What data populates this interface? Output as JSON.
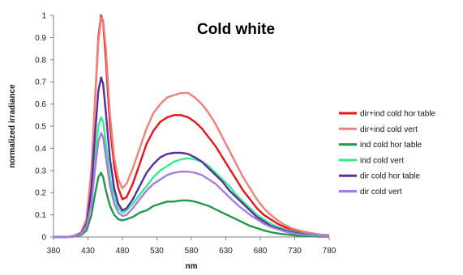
{
  "chart_data": {
    "type": "line",
    "title": "Cold white",
    "xlabel": "nm",
    "ylabel": "normalized irradiance",
    "xlim": [
      380,
      780
    ],
    "ylim": [
      0,
      1
    ],
    "x_ticks": [
      "380",
      "430",
      "480",
      "530",
      "580",
      "630",
      "680",
      "730",
      "780"
    ],
    "y_ticks": [
      "0",
      "0.1",
      "0.2",
      "0.3",
      "0.4",
      "0.5",
      "0.6",
      "0.7",
      "0.8",
      "0.9",
      "1"
    ],
    "legend_position": "right",
    "grid": false,
    "series": [
      {
        "name": "dir+ind cold hor table",
        "color": "#e8141c",
        "points": [
          [
            380,
            0
          ],
          [
            400,
            0
          ],
          [
            410,
            0.005
          ],
          [
            420,
            0.02
          ],
          [
            428,
            0.08
          ],
          [
            435,
            0.3
          ],
          [
            440,
            0.6
          ],
          [
            445,
            0.9
          ],
          [
            449,
            1.0
          ],
          [
            452,
            0.97
          ],
          [
            456,
            0.8
          ],
          [
            462,
            0.5
          ],
          [
            468,
            0.32
          ],
          [
            474,
            0.22
          ],
          [
            480,
            0.17
          ],
          [
            486,
            0.18
          ],
          [
            495,
            0.24
          ],
          [
            505,
            0.33
          ],
          [
            515,
            0.42
          ],
          [
            525,
            0.48
          ],
          [
            535,
            0.52
          ],
          [
            545,
            0.54
          ],
          [
            555,
            0.55
          ],
          [
            565,
            0.55
          ],
          [
            575,
            0.54
          ],
          [
            585,
            0.52
          ],
          [
            595,
            0.49
          ],
          [
            605,
            0.45
          ],
          [
            615,
            0.41
          ],
          [
            625,
            0.36
          ],
          [
            635,
            0.31
          ],
          [
            645,
            0.26
          ],
          [
            655,
            0.21
          ],
          [
            665,
            0.17
          ],
          [
            675,
            0.13
          ],
          [
            685,
            0.1
          ],
          [
            695,
            0.08
          ],
          [
            705,
            0.06
          ],
          [
            715,
            0.045
          ],
          [
            725,
            0.035
          ],
          [
            735,
            0.025
          ],
          [
            750,
            0.015
          ],
          [
            765,
            0.01
          ],
          [
            780,
            0.005
          ]
        ]
      },
      {
        "name": "dir+ind cold vert",
        "color": "#f08078",
        "points": [
          [
            380,
            0
          ],
          [
            400,
            0
          ],
          [
            410,
            0.005
          ],
          [
            420,
            0.02
          ],
          [
            428,
            0.08
          ],
          [
            435,
            0.3
          ],
          [
            440,
            0.6
          ],
          [
            445,
            0.88
          ],
          [
            449,
            0.99
          ],
          [
            452,
            0.98
          ],
          [
            456,
            0.85
          ],
          [
            462,
            0.55
          ],
          [
            468,
            0.36
          ],
          [
            474,
            0.26
          ],
          [
            480,
            0.22
          ],
          [
            486,
            0.24
          ],
          [
            495,
            0.31
          ],
          [
            505,
            0.4
          ],
          [
            515,
            0.49
          ],
          [
            525,
            0.56
          ],
          [
            535,
            0.6
          ],
          [
            545,
            0.63
          ],
          [
            555,
            0.64
          ],
          [
            565,
            0.65
          ],
          [
            575,
            0.65
          ],
          [
            585,
            0.63
          ],
          [
            595,
            0.6
          ],
          [
            605,
            0.56
          ],
          [
            615,
            0.51
          ],
          [
            625,
            0.45
          ],
          [
            635,
            0.39
          ],
          [
            645,
            0.33
          ],
          [
            655,
            0.27
          ],
          [
            665,
            0.22
          ],
          [
            675,
            0.17
          ],
          [
            685,
            0.13
          ],
          [
            695,
            0.1
          ],
          [
            705,
            0.075
          ],
          [
            715,
            0.055
          ],
          [
            725,
            0.04
          ],
          [
            735,
            0.03
          ],
          [
            750,
            0.02
          ],
          [
            765,
            0.012
          ],
          [
            780,
            0.008
          ]
        ]
      },
      {
        "name": "ind cold hor table",
        "color": "#1f9a48",
        "points": [
          [
            380,
            0
          ],
          [
            400,
            0
          ],
          [
            410,
            0.002
          ],
          [
            420,
            0.008
          ],
          [
            428,
            0.03
          ],
          [
            435,
            0.1
          ],
          [
            440,
            0.19
          ],
          [
            445,
            0.27
          ],
          [
            449,
            0.29
          ],
          [
            452,
            0.27
          ],
          [
            456,
            0.21
          ],
          [
            462,
            0.14
          ],
          [
            468,
            0.1
          ],
          [
            474,
            0.08
          ],
          [
            480,
            0.075
          ],
          [
            486,
            0.08
          ],
          [
            495,
            0.09
          ],
          [
            505,
            0.11
          ],
          [
            515,
            0.12
          ],
          [
            525,
            0.14
          ],
          [
            535,
            0.15
          ],
          [
            545,
            0.16
          ],
          [
            555,
            0.16
          ],
          [
            565,
            0.165
          ],
          [
            575,
            0.165
          ],
          [
            585,
            0.16
          ],
          [
            595,
            0.15
          ],
          [
            605,
            0.14
          ],
          [
            615,
            0.125
          ],
          [
            625,
            0.11
          ],
          [
            635,
            0.095
          ],
          [
            645,
            0.08
          ],
          [
            655,
            0.065
          ],
          [
            665,
            0.05
          ],
          [
            675,
            0.04
          ],
          [
            685,
            0.03
          ],
          [
            695,
            0.022
          ],
          [
            705,
            0.016
          ],
          [
            715,
            0.012
          ],
          [
            725,
            0.009
          ],
          [
            735,
            0.006
          ],
          [
            750,
            0.004
          ],
          [
            765,
            0.002
          ],
          [
            780,
            0.001
          ]
        ]
      },
      {
        "name": "ind cold vert",
        "color": "#33ee8a",
        "points": [
          [
            380,
            0
          ],
          [
            400,
            0
          ],
          [
            410,
            0.004
          ],
          [
            420,
            0.012
          ],
          [
            428,
            0.05
          ],
          [
            435,
            0.18
          ],
          [
            440,
            0.35
          ],
          [
            445,
            0.5
          ],
          [
            449,
            0.54
          ],
          [
            452,
            0.52
          ],
          [
            456,
            0.42
          ],
          [
            462,
            0.27
          ],
          [
            468,
            0.18
          ],
          [
            474,
            0.13
          ],
          [
            480,
            0.11
          ],
          [
            486,
            0.12
          ],
          [
            495,
            0.15
          ],
          [
            505,
            0.19
          ],
          [
            515,
            0.23
          ],
          [
            525,
            0.27
          ],
          [
            535,
            0.3
          ],
          [
            545,
            0.32
          ],
          [
            555,
            0.34
          ],
          [
            565,
            0.35
          ],
          [
            575,
            0.355
          ],
          [
            585,
            0.35
          ],
          [
            595,
            0.34
          ],
          [
            605,
            0.32
          ],
          [
            615,
            0.29
          ],
          [
            625,
            0.26
          ],
          [
            635,
            0.23
          ],
          [
            645,
            0.19
          ],
          [
            655,
            0.16
          ],
          [
            665,
            0.13
          ],
          [
            675,
            0.1
          ],
          [
            685,
            0.08
          ],
          [
            695,
            0.06
          ],
          [
            705,
            0.045
          ],
          [
            715,
            0.035
          ],
          [
            725,
            0.025
          ],
          [
            735,
            0.018
          ],
          [
            750,
            0.012
          ],
          [
            765,
            0.008
          ],
          [
            780,
            0.005
          ]
        ]
      },
      {
        "name": "dir cold hor table",
        "color": "#5b2c9e",
        "points": [
          [
            380,
            0
          ],
          [
            400,
            0
          ],
          [
            410,
            0.004
          ],
          [
            420,
            0.015
          ],
          [
            428,
            0.06
          ],
          [
            435,
            0.22
          ],
          [
            440,
            0.45
          ],
          [
            445,
            0.66
          ],
          [
            449,
            0.72
          ],
          [
            452,
            0.69
          ],
          [
            456,
            0.56
          ],
          [
            462,
            0.35
          ],
          [
            468,
            0.22
          ],
          [
            474,
            0.15
          ],
          [
            480,
            0.12
          ],
          [
            486,
            0.13
          ],
          [
            495,
            0.17
          ],
          [
            505,
            0.23
          ],
          [
            515,
            0.29
          ],
          [
            525,
            0.33
          ],
          [
            535,
            0.36
          ],
          [
            545,
            0.375
          ],
          [
            555,
            0.38
          ],
          [
            565,
            0.38
          ],
          [
            575,
            0.375
          ],
          [
            585,
            0.36
          ],
          [
            595,
            0.34
          ],
          [
            605,
            0.31
          ],
          [
            615,
            0.28
          ],
          [
            625,
            0.25
          ],
          [
            635,
            0.21
          ],
          [
            645,
            0.18
          ],
          [
            655,
            0.15
          ],
          [
            665,
            0.12
          ],
          [
            675,
            0.09
          ],
          [
            685,
            0.07
          ],
          [
            695,
            0.05
          ],
          [
            705,
            0.04
          ],
          [
            715,
            0.03
          ],
          [
            725,
            0.022
          ],
          [
            735,
            0.016
          ],
          [
            750,
            0.01
          ],
          [
            765,
            0.006
          ],
          [
            780,
            0.004
          ]
        ]
      },
      {
        "name": "dir cold vert",
        "color": "#a67de2",
        "points": [
          [
            380,
            0
          ],
          [
            400,
            0
          ],
          [
            410,
            0.003
          ],
          [
            420,
            0.012
          ],
          [
            428,
            0.05
          ],
          [
            435,
            0.15
          ],
          [
            440,
            0.3
          ],
          [
            445,
            0.43
          ],
          [
            449,
            0.47
          ],
          [
            452,
            0.45
          ],
          [
            456,
            0.36
          ],
          [
            462,
            0.23
          ],
          [
            468,
            0.15
          ],
          [
            474,
            0.11
          ],
          [
            480,
            0.095
          ],
          [
            486,
            0.1
          ],
          [
            495,
            0.13
          ],
          [
            505,
            0.17
          ],
          [
            515,
            0.21
          ],
          [
            525,
            0.24
          ],
          [
            535,
            0.26
          ],
          [
            545,
            0.28
          ],
          [
            555,
            0.29
          ],
          [
            565,
            0.295
          ],
          [
            575,
            0.295
          ],
          [
            585,
            0.29
          ],
          [
            595,
            0.28
          ],
          [
            605,
            0.26
          ],
          [
            615,
            0.24
          ],
          [
            625,
            0.21
          ],
          [
            635,
            0.18
          ],
          [
            645,
            0.15
          ],
          [
            655,
            0.125
          ],
          [
            665,
            0.1
          ],
          [
            675,
            0.08
          ],
          [
            685,
            0.06
          ],
          [
            695,
            0.045
          ],
          [
            705,
            0.035
          ],
          [
            715,
            0.025
          ],
          [
            725,
            0.018
          ],
          [
            735,
            0.013
          ],
          [
            750,
            0.008
          ],
          [
            765,
            0.005
          ],
          [
            780,
            0.003
          ]
        ]
      }
    ]
  }
}
